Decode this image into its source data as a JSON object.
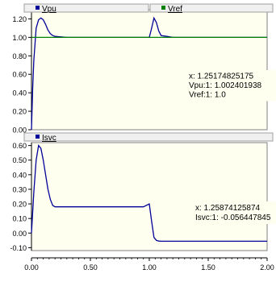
{
  "colors": {
    "plot_background": "#fffff0",
    "frame": "#808080",
    "legend_background": "#f0f0f0",
    "vpu": "#000099",
    "vref": "#008000",
    "isvc": "#000099",
    "readout_background": "#fffff0"
  },
  "chart_data": [
    {
      "type": "line",
      "x_tick_labels": [
        "0.00",
        "0.50",
        "1.00",
        "1.50",
        "2.00"
      ],
      "xlim": [
        0,
        2
      ],
      "ylim": [
        0,
        1.3
      ],
      "y_tick_labels": [
        "0.00",
        "0.20",
        "0.40",
        "0.60",
        "0.80",
        "1.00",
        "1.20"
      ],
      "y_ticks": [
        0,
        0.2,
        0.4,
        0.6,
        0.8,
        1.0,
        1.2
      ],
      "legend": {
        "placement": "top",
        "entries": [
          "Vpu",
          "Vref"
        ]
      },
      "series": [
        {
          "name": "Vpu",
          "color": "#000099",
          "x": [
            0,
            0.01,
            0.02,
            0.04,
            0.06,
            0.08,
            0.1,
            0.12,
            0.14,
            0.16,
            0.18,
            0.2,
            0.25,
            0.3,
            0.4,
            0.6,
            0.8,
            1.0,
            1.02,
            1.04,
            1.06,
            1.08,
            1.1,
            1.15,
            1.2,
            1.4,
            1.6,
            1.8,
            2.0
          ],
          "y": [
            0,
            0.45,
            0.75,
            1.1,
            1.19,
            1.21,
            1.19,
            1.14,
            1.08,
            1.04,
            1.02,
            1.01,
            1.005,
            1.0,
            1.0,
            1.0,
            1.0,
            1.0,
            1.1,
            1.21,
            1.16,
            1.07,
            1.02,
            1.01,
            1.0,
            1.0,
            1.0,
            1.0,
            1.0
          ]
        },
        {
          "name": "Vref",
          "color": "#008000",
          "x": [
            0,
            2
          ],
          "y": [
            1.0,
            1.0
          ]
        }
      ],
      "readout": [
        "x: 1.25174825175",
        "Vpu:1: 1.002401938",
        "Vref:1: 1.0"
      ]
    },
    {
      "type": "line",
      "x_tick_labels": [
        "0.00",
        "0.50",
        "1.00",
        "1.50",
        "2.00"
      ],
      "xlim": [
        0,
        2
      ],
      "ylim": [
        -0.12,
        0.62
      ],
      "y_tick_labels": [
        "-0.10",
        "0.00",
        "0.10",
        "0.20",
        "0.30",
        "0.40",
        "0.50",
        "0.60"
      ],
      "y_ticks": [
        -0.1,
        0,
        0.1,
        0.2,
        0.3,
        0.4,
        0.5,
        0.6
      ],
      "legend": {
        "placement": "top",
        "entries": [
          "Isvc"
        ]
      },
      "series": [
        {
          "name": "Isvc",
          "color": "#000099",
          "x": [
            0,
            0.02,
            0.04,
            0.06,
            0.08,
            0.1,
            0.12,
            0.14,
            0.16,
            0.18,
            0.2,
            0.22,
            0.25,
            0.3,
            0.5,
            0.8,
            0.95,
            1.0,
            1.02,
            1.04,
            1.06,
            1.08,
            1.1,
            1.15,
            1.2,
            1.5,
            1.8,
            2.0
          ],
          "y": [
            0,
            0.28,
            0.5,
            0.6,
            0.58,
            0.5,
            0.4,
            0.3,
            0.23,
            0.19,
            0.18,
            0.18,
            0.18,
            0.18,
            0.18,
            0.18,
            0.18,
            0.2,
            0.08,
            -0.03,
            -0.05,
            -0.055,
            -0.056,
            -0.056,
            -0.056,
            -0.056,
            -0.056,
            -0.056
          ]
        }
      ],
      "readout": [
        "x: 1.25874125874",
        "Isvc:1: -0.056447845"
      ]
    }
  ]
}
